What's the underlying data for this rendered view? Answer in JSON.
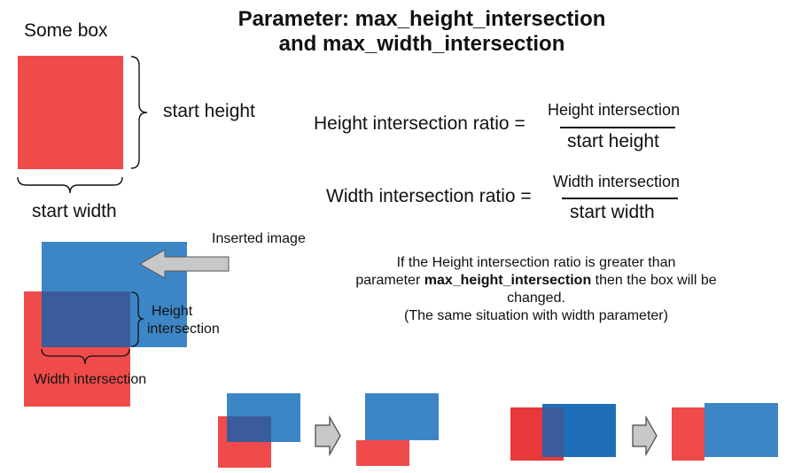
{
  "title": {
    "line1": "Parameter: max_height_intersection",
    "line2": "and max_width_intersection"
  },
  "labels": {
    "some_box": "Some box",
    "start_height": "start height",
    "start_width": "start width",
    "inserted_image": "Inserted image",
    "height_intersection_line1": "Height",
    "height_intersection_line2": "intersection",
    "width_intersection": "Width intersection"
  },
  "formulas": {
    "height_ratio_label": "Height intersection ratio =",
    "height_numerator": "Height intersection",
    "height_denominator": "start height",
    "width_ratio_label": "Width intersection ratio =",
    "width_numerator": "Width intersection",
    "width_denominator": "start width"
  },
  "note": {
    "line1": "If the Height intersection ratio is greater than",
    "line2_prefix": "parameter ",
    "line2_bold": "max_height_intersection",
    "line2_suffix": " then the box will be changed.",
    "line3": "(The same situation with width parameter)"
  },
  "colors": {
    "red_box": "#ef4b4b",
    "blue_box": "#3d86c6",
    "overlap": "#3b5c9a",
    "arrow_gray": "#c8c8c8"
  }
}
